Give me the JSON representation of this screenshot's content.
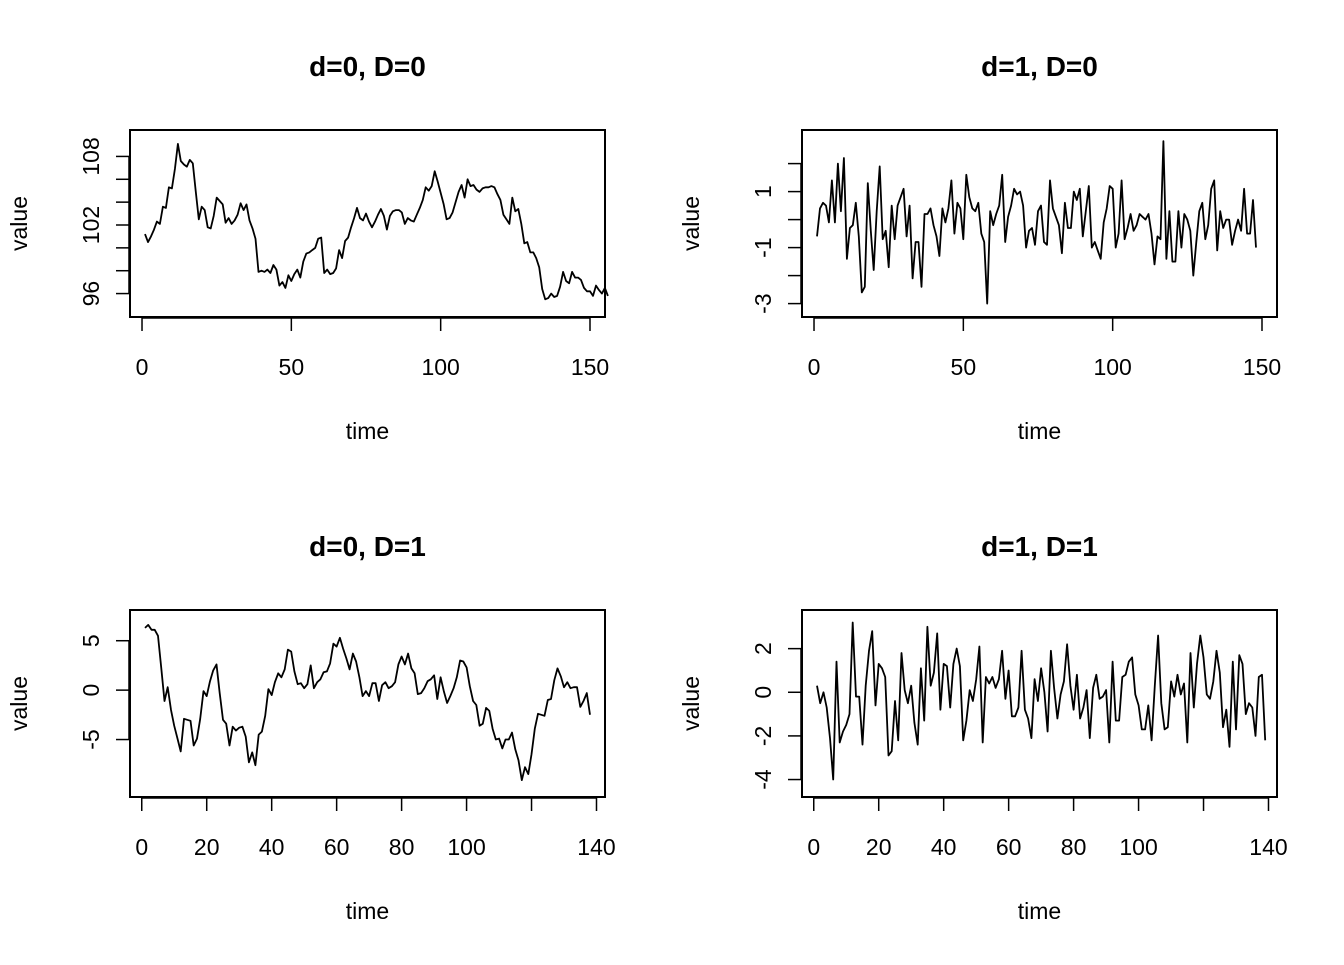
{
  "chart_data": [
    {
      "type": "line",
      "title": "d=0, D=0",
      "xlabel": "time",
      "ylabel": "value",
      "xlim": [
        1,
        150
      ],
      "ylim": [
        95,
        109.7
      ],
      "xticks": [
        0,
        50,
        100,
        150
      ],
      "xtick_labels": [
        "0",
        "50",
        "100",
        "150"
      ],
      "yticks": [
        96,
        98,
        100,
        102,
        104,
        106,
        108
      ],
      "ytick_labels": [
        "96",
        "",
        "",
        "102",
        "",
        "",
        "108"
      ],
      "series": [
        {
          "values": [
            101.2,
            100.5,
            101.0,
            101.6,
            102.3,
            102.1,
            103.6,
            103.5,
            105.3,
            105.2,
            106.9,
            109.1,
            107.6,
            107.3,
            107.1,
            107.7,
            107.4,
            104.9,
            102.5,
            103.6,
            103.3,
            101.8,
            101.7,
            102.8,
            104.4,
            104.1,
            103.8,
            102.2,
            102.6,
            102.1,
            102.4,
            102.9,
            103.9,
            103.3,
            103.8,
            102.4,
            101.7,
            100.8,
            97.9,
            98.0,
            97.9,
            98.1,
            97.8,
            98.5,
            98.1,
            96.7,
            97.0,
            96.5,
            97.6,
            97.1,
            97.7,
            98.1,
            97.4,
            98.8,
            99.5,
            99.6,
            99.8,
            100.0,
            100.8,
            100.9,
            97.8,
            98.1,
            97.7,
            97.8,
            98.2,
            99.8,
            99.1,
            100.6,
            100.9,
            101.8,
            102.6,
            103.5,
            102.6,
            102.4,
            103.0,
            102.3,
            101.8,
            102.3,
            102.9,
            103.4,
            102.8,
            101.6,
            102.8,
            103.2,
            103.3,
            103.3,
            103.1,
            102.1,
            102.6,
            102.4,
            102.3,
            102.9,
            103.5,
            104.2,
            105.3,
            105.0,
            105.4,
            106.7,
            105.8,
            104.8,
            103.8,
            102.5,
            102.6,
            103.1,
            104.0,
            104.9,
            105.5,
            104.4,
            106.0,
            105.4,
            105.5,
            105.1,
            104.9,
            105.2,
            105.3,
            105.3,
            105.4,
            105.3,
            104.7,
            104.2,
            102.9,
            102.5,
            102.1,
            104.4,
            103.2,
            103.4,
            102.1,
            100.4,
            100.5,
            99.6,
            99.6,
            99.1,
            98.3,
            96.4,
            95.5,
            95.6,
            96.0,
            95.7,
            95.8,
            96.6,
            97.9,
            97.1,
            96.9,
            97.9,
            97.4,
            97.4,
            97.2,
            96.5,
            96.2,
            96.2,
            95.8,
            96.7,
            96.3,
            96.0,
            96.5,
            95.8
          ]
        }
      ]
    },
    {
      "type": "line",
      "title": "d=1, D=0",
      "xlabel": "time",
      "ylabel": "value",
      "xlim": [
        1,
        150
      ],
      "ylim": [
        -3.05,
        2.95
      ],
      "xticks": [
        0,
        50,
        100,
        150
      ],
      "xtick_labels": [
        "0",
        "50",
        "100",
        "150"
      ],
      "yticks": [
        -3,
        -2,
        -1,
        0,
        1,
        2
      ],
      "ytick_labels": [
        "-3",
        "",
        "-1",
        "",
        "1",
        ""
      ],
      "series": [
        {
          "values": [
            -0.6,
            0.4,
            0.6,
            0.5,
            -0.1,
            1.4,
            -0.1,
            2.0,
            0.3,
            2.2,
            -1.4,
            -0.3,
            -0.2,
            0.6,
            -0.6,
            -2.6,
            -2.4,
            1.3,
            -0.4,
            -1.8,
            0.3,
            1.9,
            -0.7,
            -0.4,
            -1.7,
            0.5,
            -0.7,
            0.5,
            0.8,
            1.1,
            -0.6,
            0.5,
            -2.1,
            -0.8,
            -0.8,
            -2.4,
            0.2,
            0.2,
            0.4,
            -0.2,
            -0.6,
            -1.3,
            0.4,
            -0.1,
            0.4,
            1.4,
            -0.5,
            0.6,
            0.4,
            -0.7,
            1.6,
            0.8,
            0.4,
            0.3,
            0.6,
            -0.5,
            -0.8,
            -3.0,
            0.3,
            -0.2,
            0.2,
            0.5,
            1.6,
            -0.8,
            0.1,
            0.5,
            1.1,
            0.9,
            1.0,
            0.5,
            -1.0,
            -0.4,
            -0.3,
            -0.9,
            0.3,
            0.5,
            -0.8,
            -0.9,
            1.4,
            0.4,
            0.1,
            -0.2,
            -1.2,
            0.6,
            -0.3,
            -0.3,
            1.0,
            0.7,
            1.1,
            -0.6,
            0.3,
            1.2,
            -1.0,
            -0.8,
            -1.1,
            -1.4,
            -0.1,
            0.4,
            1.2,
            1.1,
            -1.0,
            -0.5,
            1.4,
            -0.7,
            -0.3,
            0.2,
            -0.4,
            -0.2,
            0.2,
            0.1,
            0.0,
            0.2,
            -0.5,
            -1.6,
            -0.6,
            -0.7,
            2.8,
            -1.4,
            0.3,
            -1.5,
            -1.5,
            0.3,
            -1.0,
            0.2,
            0.0,
            -0.4,
            -2.0,
            -0.8,
            0.3,
            0.6,
            -0.7,
            -0.2,
            1.1,
            1.4,
            -1.1,
            0.3,
            -0.3,
            0.0,
            0.0,
            -0.9,
            -0.4,
            0.0,
            -0.4,
            1.1,
            -0.5,
            -0.5,
            0.7,
            -1.0
          ]
        }
      ]
    },
    {
      "type": "line",
      "title": "d=0, D=1",
      "xlabel": "time",
      "ylabel": "value",
      "xlim": [
        1,
        138
      ],
      "ylim": [
        -9.6,
        7.4
      ],
      "xticks": [
        0,
        20,
        40,
        60,
        80,
        100,
        120,
        140
      ],
      "xtick_labels": [
        "0",
        "20",
        "40",
        "60",
        "80",
        "100",
        "",
        "140"
      ],
      "yticks": [
        -5,
        0,
        5
      ],
      "ytick_labels": [
        "-5",
        "0",
        "5"
      ],
      "series": [
        {
          "values": [
            6.3,
            6.6,
            6.1,
            6.1,
            5.5,
            2.3,
            -1.1,
            0.3,
            -2.0,
            -3.6,
            -4.9,
            -6.2,
            -2.9,
            -3.0,
            -3.1,
            -5.6,
            -4.9,
            -2.9,
            -0.1,
            -0.6,
            0.9,
            2.0,
            2.6,
            -0.3,
            -3.0,
            -3.4,
            -5.6,
            -3.7,
            -4.1,
            -3.8,
            -3.7,
            -4.7,
            -7.3,
            -6.3,
            -7.6,
            -4.5,
            -4.2,
            -2.6,
            0.1,
            -0.5,
            0.8,
            1.7,
            1.3,
            2.1,
            4.1,
            3.9,
            1.9,
            0.6,
            0.7,
            0.2,
            0.6,
            2.5,
            0.2,
            0.8,
            1.1,
            1.8,
            1.9,
            2.7,
            4.7,
            4.4,
            5.3,
            4.2,
            3.2,
            2.1,
            3.7,
            2.9,
            1.3,
            -0.6,
            -0.1,
            -0.6,
            0.7,
            0.7,
            -1.1,
            0.5,
            0.8,
            0.2,
            0.4,
            0.8,
            2.6,
            3.4,
            2.6,
            3.7,
            2.2,
            1.7,
            -0.4,
            -0.3,
            0.2,
            0.9,
            1.1,
            1.5,
            -0.9,
            1.3,
            -0.1,
            -1.3,
            -0.6,
            0.2,
            1.3,
            3.0,
            2.9,
            2.3,
            0.4,
            -1.1,
            -1.5,
            -3.6,
            -3.4,
            -1.8,
            -2.1,
            -3.9,
            -5.0,
            -4.9,
            -5.9,
            -5.0,
            -5.0,
            -4.3,
            -6.0,
            -7.1,
            -9.1,
            -7.8,
            -8.5,
            -6.5,
            -3.9,
            -2.4,
            -2.5,
            -2.6,
            -1.0,
            -0.9,
            1.0,
            2.2,
            1.4,
            0.3,
            0.8,
            0.2,
            0.3,
            0.3,
            -1.7,
            -1.1,
            -0.3,
            -2.5
          ]
        }
      ]
    },
    {
      "type": "line",
      "title": "d=1, D=1",
      "xlabel": "time",
      "ylabel": "value",
      "xlim": [
        1,
        138
      ],
      "ylim": [
        -4.25,
        3.45
      ],
      "xticks": [
        0,
        20,
        40,
        60,
        80,
        100,
        120,
        140
      ],
      "xtick_labels": [
        "0",
        "20",
        "40",
        "60",
        "80",
        "100",
        "",
        "140"
      ],
      "yticks": [
        -4,
        -2,
        0,
        2
      ],
      "ytick_labels": [
        "-4",
        "-2",
        "0",
        "2"
      ],
      "series": [
        {
          "values": [
            0.3,
            -0.5,
            0.0,
            -0.7,
            -2.1,
            -4.0,
            1.4,
            -2.3,
            -1.8,
            -1.5,
            -1.0,
            3.2,
            -0.2,
            -0.2,
            -2.4,
            0.3,
            1.9,
            2.8,
            -0.6,
            1.3,
            1.1,
            0.7,
            -2.9,
            -2.7,
            -0.4,
            -2.2,
            1.8,
            0.1,
            -0.5,
            0.3,
            -1.4,
            -2.4,
            1.1,
            -1.3,
            3.0,
            0.3,
            0.9,
            2.7,
            -0.8,
            1.3,
            1.2,
            -0.7,
            1.3,
            2.0,
            1.2,
            -2.2,
            -1.3,
            0.1,
            -0.4,
            0.6,
            2.1,
            -2.3,
            0.7,
            0.4,
            0.7,
            0.2,
            0.6,
            1.9,
            -0.3,
            1.0,
            -1.1,
            -1.1,
            -0.7,
            1.9,
            -0.8,
            -1.2,
            -2.1,
            0.6,
            -0.4,
            1.1,
            0.0,
            -1.8,
            1.9,
            0.2,
            -1.2,
            -0.1,
            0.5,
            2.2,
            0.3,
            -0.8,
            0.8,
            -1.2,
            -0.7,
            0.1,
            -2.1,
            0.2,
            0.8,
            -0.3,
            -0.2,
            0.1,
            -2.3,
            1.4,
            -1.3,
            -1.3,
            0.7,
            0.8,
            1.4,
            1.6,
            -0.1,
            -0.6,
            -1.7,
            -1.7,
            -0.6,
            -2.2,
            0.3,
            2.6,
            -0.5,
            -1.7,
            -1.6,
            0.5,
            -0.2,
            0.8,
            -0.1,
            0.4,
            -2.3,
            1.8,
            -0.7,
            1.3,
            2.6,
            1.6,
            -0.1,
            -0.3,
            0.5,
            1.9,
            0.9,
            -1.6,
            -0.8,
            -2.5,
            1.4,
            -1.7,
            1.7,
            1.3,
            -1.0,
            -0.5,
            -0.7,
            -2.0,
            0.7,
            0.8,
            -2.2
          ]
        }
      ]
    }
  ]
}
